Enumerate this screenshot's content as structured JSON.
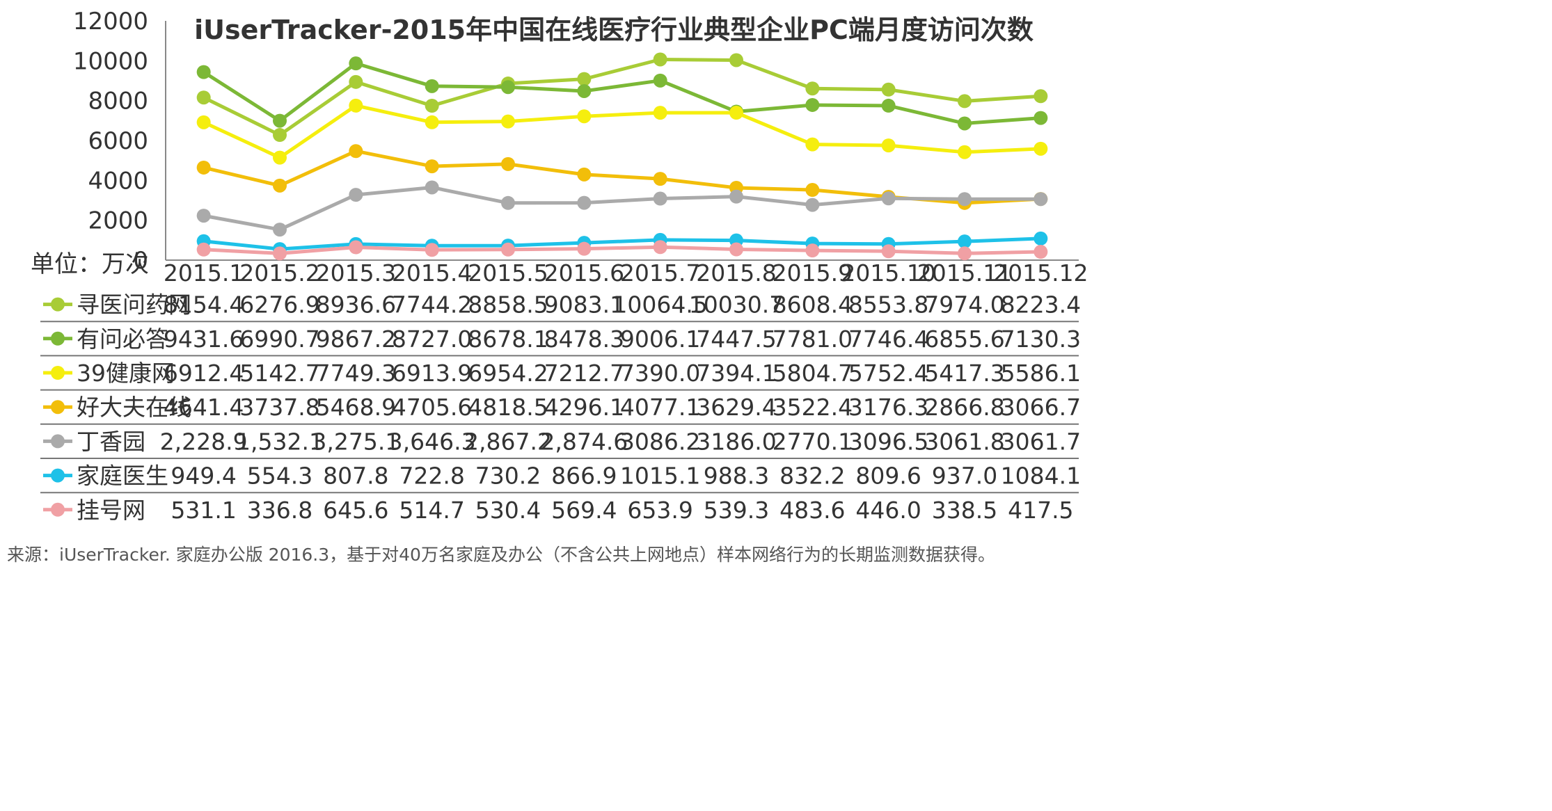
{
  "chart_data": {
    "type": "line",
    "title": "iUserTracker-2015年中国在线医疗行业典型企业PC端月度访问次数",
    "unit_label": "单位：万次",
    "ylim": [
      0,
      12000
    ],
    "yticks": [
      "0",
      "2000",
      "4000",
      "6000",
      "8000",
      "10000",
      "12000"
    ],
    "categories": [
      "2015.1",
      "2015.2",
      "2015.3",
      "2015.4",
      "2015.5",
      "2015.6",
      "2015.7",
      "2015.8",
      "2015.9",
      "2015.10",
      "2015.11",
      "2015.12"
    ],
    "series": [
      {
        "name": "寻医问药网",
        "color": "#A8CC36",
        "values": [
          8154.4,
          6276.9,
          8936.6,
          7744.2,
          8858.5,
          9083.1,
          10064.5,
          10030.7,
          8608.4,
          8553.8,
          7974.0,
          8223.4
        ],
        "labels": [
          "8154.4",
          "6276.9",
          "8936.6",
          "7744.2",
          "8858.5",
          "9083.1",
          "10064.5",
          "10030.7",
          "8608.4",
          "8553.8",
          "7974.0",
          "8223.4"
        ]
      },
      {
        "name": "有问必答",
        "color": "#7CB836",
        "values": [
          9431.6,
          6990.7,
          9867.2,
          8727.0,
          8678.1,
          8478.3,
          9006.1,
          7447.5,
          7781.0,
          7746.4,
          6855.6,
          7130.3
        ],
        "labels": [
          "9431.6",
          "6990.7",
          "9867.2",
          "8727.0",
          "8678.1",
          "8478.3",
          "9006.1",
          "7447.5",
          "7781.0",
          "7746.4",
          "6855.6",
          "7130.3"
        ]
      },
      {
        "name": "39健康网",
        "color": "#F5EE0E",
        "values": [
          6912.4,
          5142.7,
          7749.3,
          6913.9,
          6954.2,
          7212.7,
          7390.0,
          7394.1,
          5804.7,
          5752.4,
          5417.3,
          5586.1
        ],
        "labels": [
          "6912.4",
          "5142.7",
          "7749.3",
          "6913.9",
          "6954.2",
          "7212.7",
          "7390.0",
          "7394.1",
          "5804.7",
          "5752.4",
          "5417.3",
          "5586.1"
        ]
      },
      {
        "name": "好大夫在线",
        "color": "#F2BE0A",
        "values": [
          4641.4,
          3737.8,
          5468.9,
          4705.6,
          4818.5,
          4296.1,
          4077.1,
          3629.4,
          3522.4,
          3176.3,
          2866.8,
          3066.7
        ],
        "labels": [
          "4641.4",
          "3737.8",
          "5468.9",
          "4705.6",
          "4818.5",
          "4296.1",
          "4077.1",
          "3629.4",
          "3522.4",
          "3176.3",
          "2866.8",
          "3066.7"
        ]
      },
      {
        "name": "丁香园",
        "color": "#AAAAAA",
        "values": [
          2228.9,
          1532.1,
          3275.1,
          3646.3,
          2867.2,
          2874.6,
          3086.2,
          3186.0,
          2770.1,
          3096.5,
          3061.8,
          3061.7
        ],
        "labels": [
          "2,228.9",
          "1,532.1",
          "3,275.1",
          "3,646.3",
          "2,867.2",
          "2,874.6",
          "3086.2",
          "3186.0",
          "2770.1",
          "3096.5",
          "3061.8",
          "3061.7"
        ]
      },
      {
        "name": "家庭医生",
        "color": "#1EC1E8",
        "values": [
          949.4,
          554.3,
          807.8,
          722.8,
          730.2,
          866.9,
          1015.1,
          988.3,
          832.2,
          809.6,
          937.0,
          1084.1
        ],
        "labels": [
          "949.4",
          "554.3",
          "807.8",
          "722.8",
          "730.2",
          "866.9",
          "1015.1",
          "988.3",
          "832.2",
          "809.6",
          "937.0",
          "1084.1"
        ]
      },
      {
        "name": "挂号网",
        "color": "#F0A0A4",
        "values": [
          531.1,
          336.8,
          645.6,
          514.7,
          530.4,
          569.4,
          653.9,
          539.3,
          483.6,
          446.0,
          338.5,
          417.5
        ],
        "labels": [
          "531.1",
          "336.8",
          "645.6",
          "514.7",
          "530.4",
          "569.4",
          "653.9",
          "539.3",
          "483.6",
          "446.0",
          "338.5",
          "417.5"
        ]
      }
    ],
    "grid": false,
    "legend": "data-table-below"
  },
  "source_note": "来源：iUserTracker. 家庭办公版 2016.3，基于对40万名家庭及办公（不含公共上网地点）样本网络行为的长期监测数据获得。"
}
